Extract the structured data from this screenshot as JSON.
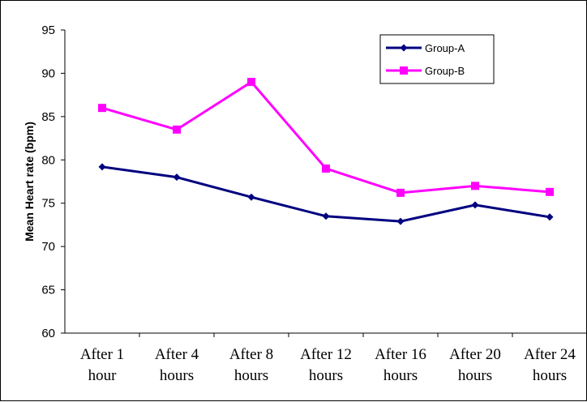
{
  "chart_data": {
    "type": "line",
    "title": "",
    "xlabel": "",
    "ylabel": "Mean Heart rate (bpm)",
    "ylim": [
      60,
      95
    ],
    "yticks": [
      60,
      65,
      70,
      75,
      80,
      85,
      90,
      95
    ],
    "categories": [
      [
        "After 1",
        "hour"
      ],
      [
        "After 4",
        "hours"
      ],
      [
        "After 8",
        "hours"
      ],
      [
        "After 12",
        "hours"
      ],
      [
        "After 16",
        "hours"
      ],
      [
        "After 20",
        "hours"
      ],
      [
        "After 24",
        "hours"
      ]
    ],
    "grid": false,
    "legend": "top-right",
    "series": [
      {
        "name": "Group-A",
        "color": "#000080",
        "marker": "diamond",
        "values": [
          79.2,
          78.0,
          75.7,
          73.5,
          72.9,
          74.8,
          73.4
        ]
      },
      {
        "name": "Group-B",
        "color": "#ff00ff",
        "marker": "square",
        "values": [
          86.0,
          83.5,
          89.0,
          79.0,
          76.2,
          77.0,
          76.3
        ]
      }
    ]
  }
}
